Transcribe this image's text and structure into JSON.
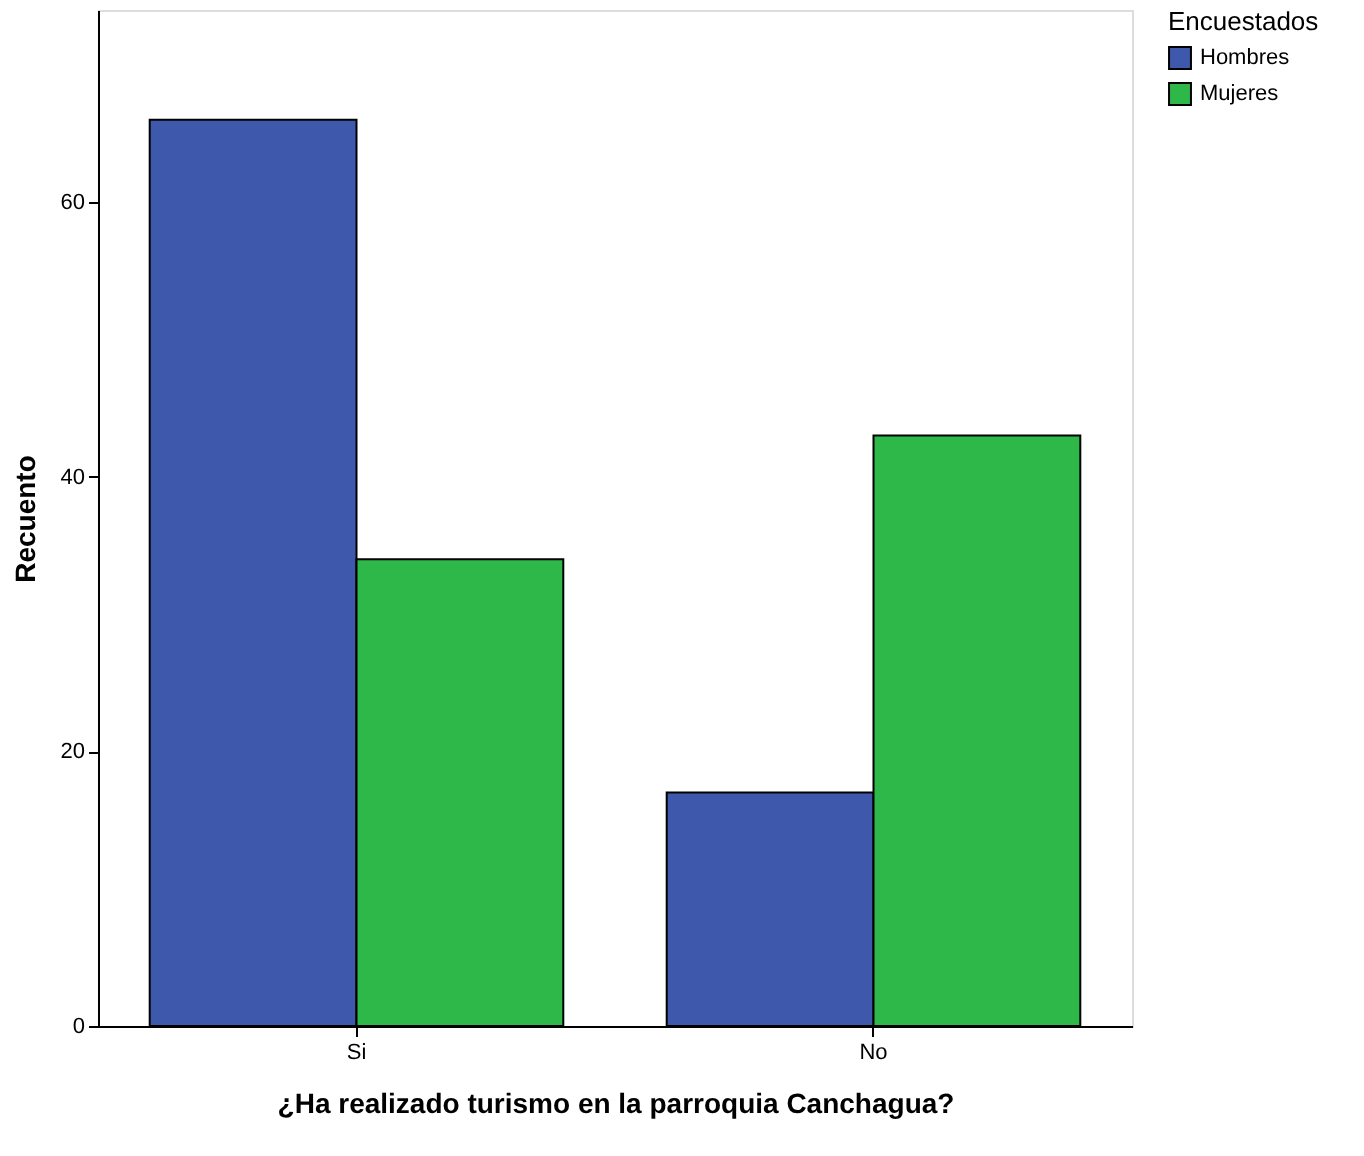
{
  "chart_data": {
    "type": "bar",
    "xlabel": "¿Ha realizado turismo en la parroquia Canchagua?",
    "ylabel": "Recuento",
    "legend_title": "Encuestados",
    "categories": [
      "Si",
      "No"
    ],
    "series": [
      {
        "name": "Hombres",
        "color": "#3e58ac",
        "values": [
          66,
          17
        ]
      },
      {
        "name": "Mujeres",
        "color": "#2eb84a",
        "values": [
          34,
          43
        ]
      }
    ],
    "ylim": [
      0,
      74
    ],
    "yticks": [
      0,
      20,
      40,
      60
    ],
    "grid": false,
    "legend": "top right"
  }
}
